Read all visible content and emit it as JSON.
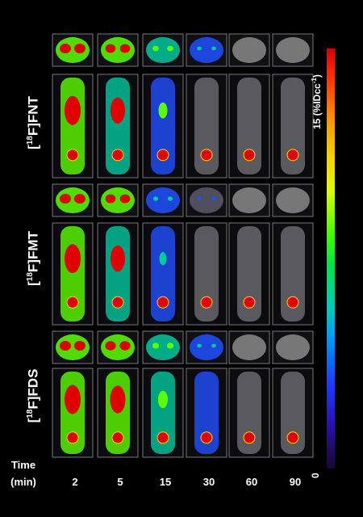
{
  "figure": {
    "tracers": [
      {
        "prefix": "[",
        "isotope": "18",
        "suffix": "F]FNT"
      },
      {
        "prefix": "[",
        "isotope": "18",
        "suffix": "F]FMT"
      },
      {
        "prefix": "[",
        "isotope": "18",
        "suffix": "F]FDS"
      }
    ],
    "time_label_line1": "Time",
    "time_label_line2": "(min)",
    "time_points": [
      "2",
      "5",
      "15",
      "30",
      "60",
      "90"
    ],
    "colorbar": {
      "max_label": "15 (%IDcc",
      "max_sup": "-1",
      "max_close": ")",
      "min_label": "0"
    },
    "uptake": [
      [
        1.0,
        0.9,
        0.55,
        0.3,
        0.1,
        0.05
      ],
      [
        1.0,
        0.9,
        0.45,
        0.25,
        0.1,
        0.05
      ],
      [
        1.0,
        0.95,
        0.6,
        0.35,
        0.15,
        0.05
      ]
    ]
  }
}
